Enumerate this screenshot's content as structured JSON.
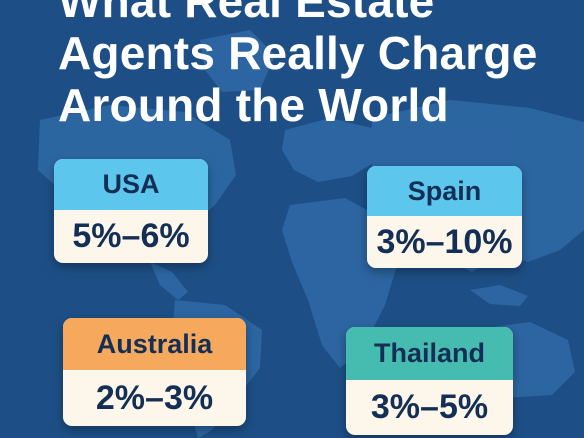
{
  "title": {
    "line1": "What Real Estate",
    "line2": "Agents Really Charge",
    "line3": "Around the World"
  },
  "colors": {
    "background": "#1d4f86",
    "continents": "#2f6aa6",
    "card_usa_spain": "#5cc6ec",
    "card_australia": "#f6a85c",
    "card_thailand": "#46bcb0",
    "card_body": "#fdf6ea",
    "text_dark": "#142f55"
  },
  "cards": {
    "usa": {
      "country": "USA",
      "rate": "5%–6%"
    },
    "spain": {
      "country": "Spain",
      "rate": "3%–10%"
    },
    "australia": {
      "country": "Australia",
      "rate": "2%–3%"
    },
    "thailand": {
      "country": "Thailand",
      "rate": "3%–5%"
    }
  }
}
